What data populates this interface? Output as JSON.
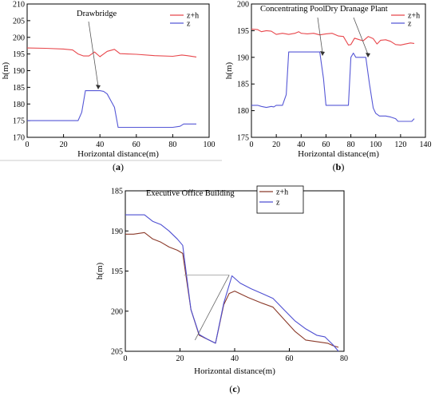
{
  "colors": {
    "zh": "#e8474c",
    "z": "#5557d6",
    "zh_c": "#8b3a2a",
    "z_c": "#4e4fd2"
  },
  "chart_data": [
    {
      "type": "line",
      "panel_label": "(a)",
      "xlabel": "Horizontal distance(m)",
      "ylabel": "h(m)",
      "xlim": [
        0,
        100
      ],
      "ylim": [
        170,
        210
      ],
      "xticks": [
        0,
        20,
        40,
        60,
        80,
        100
      ],
      "yticks": [
        170,
        175,
        180,
        185,
        190,
        195,
        200,
        205,
        210
      ],
      "legend_position": "top-right",
      "series": [
        {
          "name": "z+h",
          "color": "#e8474c",
          "x": [
            0,
            10,
            20,
            25,
            28,
            31,
            34,
            37,
            40,
            44,
            48,
            51,
            55,
            60,
            70,
            80,
            85,
            88,
            93
          ],
          "y": [
            196.8,
            196.7,
            196.5,
            196.2,
            195.0,
            194.4,
            194.4,
            195.6,
            194.2,
            195.8,
            196.4,
            195.1,
            195.0,
            194.9,
            194.5,
            194.3,
            194.7,
            194.5,
            194.1
          ]
        },
        {
          "name": "z",
          "color": "#5557d6",
          "x": [
            0,
            10,
            20,
            25,
            28,
            30,
            32,
            34,
            37,
            40,
            42,
            44,
            48,
            50,
            55,
            60,
            70,
            80,
            84,
            86,
            88,
            93
          ],
          "y": [
            175,
            175,
            175,
            175,
            175,
            177.5,
            184,
            184,
            184,
            184,
            183.8,
            183,
            179,
            173,
            173,
            173,
            173,
            173,
            173.3,
            174,
            174,
            174
          ]
        }
      ],
      "annotations": [
        {
          "text": "Drawbridge"
        }
      ]
    },
    {
      "type": "line",
      "panel_label": "(b)",
      "xlabel": "Horizontal distance(m)",
      "ylabel": "h(m)",
      "xlim": [
        0,
        140
      ],
      "ylim": [
        175,
        200
      ],
      "xticks": [
        0,
        20,
        40,
        60,
        80,
        100,
        120,
        140
      ],
      "yticks": [
        175,
        180,
        185,
        190,
        195,
        200
      ],
      "legend_position": "top-right",
      "series": [
        {
          "name": "z+h",
          "color": "#e8474c",
          "x": [
            0,
            5,
            8,
            12,
            16,
            20,
            25,
            30,
            35,
            38,
            40,
            45,
            50,
            55,
            60,
            65,
            70,
            74,
            78,
            80,
            83,
            87,
            90,
            94,
            98,
            101,
            104,
            108,
            112,
            116,
            120,
            124,
            128,
            131
          ],
          "y": [
            195.3,
            195.2,
            194.8,
            195.0,
            194.9,
            194.3,
            194.5,
            194.3,
            194.5,
            194.8,
            194.5,
            194.4,
            194.5,
            194.2,
            194.4,
            194.5,
            194.0,
            193.9,
            192.3,
            192.4,
            193.6,
            193.3,
            193.1,
            193.9,
            193.5,
            192.5,
            193.2,
            193.3,
            193.0,
            192.4,
            192.3,
            192.5,
            192.7,
            192.6
          ]
        },
        {
          "name": "z",
          "color": "#5557d6",
          "x": [
            0,
            5,
            8,
            12,
            16,
            18,
            20,
            25,
            28,
            30,
            40,
            50,
            55,
            58,
            60,
            70,
            78,
            80,
            82,
            84,
            86,
            90,
            92,
            95,
            98,
            100,
            103,
            108,
            112,
            116,
            118,
            122,
            126,
            129,
            131
          ],
          "y": [
            181,
            181,
            180.8,
            180.6,
            180.8,
            180.7,
            181.0,
            181.0,
            183.0,
            191.0,
            191.0,
            191.0,
            191.0,
            186.0,
            181.0,
            181.0,
            181.0,
            190.0,
            190.8,
            190.0,
            190.0,
            190.0,
            190.0,
            185.0,
            180.5,
            179.5,
            179.0,
            179.0,
            178.8,
            178.5,
            178.0,
            178.0,
            178.0,
            178.0,
            178.5
          ]
        }
      ],
      "annotations": [
        {
          "text": "Concentrating Pool"
        },
        {
          "text": "Dry Dranage Plant"
        }
      ]
    },
    {
      "type": "line",
      "panel_label": "(c)",
      "xlabel": "Horizontal distance(m)",
      "ylabel": "h(m)",
      "xlim": [
        0,
        80
      ],
      "ylim": [
        185,
        205
      ],
      "xticks": [
        0,
        20,
        40,
        60,
        80
      ],
      "yticks": [
        185,
        190,
        195,
        200,
        205
      ],
      "legend_position": "top-right",
      "series": [
        {
          "name": "z+h",
          "color": "#8b3a2a",
          "x": [
            0,
            3,
            7,
            10,
            13,
            16,
            19,
            21,
            24,
            27,
            30,
            33,
            36,
            38,
            40,
            45,
            50,
            54,
            58,
            62,
            66,
            70,
            74,
            76,
            78
          ],
          "y": [
            190.4,
            190.4,
            190.2,
            191.0,
            191.4,
            192.0,
            192.4,
            192.8,
            199.8,
            203.0,
            203.5,
            204.0,
            199.2,
            197.8,
            197.5,
            198.3,
            199.0,
            199.5,
            201.0,
            202.5,
            203.6,
            203.8,
            204.0,
            204.3,
            204.5
          ]
        },
        {
          "name": "z",
          "color": "#4e4fd2",
          "x": [
            0,
            3,
            7,
            10,
            13,
            16,
            19,
            21,
            24,
            27,
            30,
            33,
            36,
            39,
            42,
            46,
            50,
            54,
            58,
            62,
            66,
            70,
            73,
            76,
            78
          ],
          "y": [
            188,
            188,
            188,
            188.8,
            189.2,
            190.0,
            191.0,
            191.8,
            199.8,
            202.9,
            203.5,
            204.0,
            199.0,
            195.6,
            196.5,
            197.2,
            197.8,
            198.4,
            199.8,
            201.2,
            202.2,
            203.0,
            203.2,
            204.2,
            205.0
          ]
        }
      ],
      "annotations": [
        {
          "text": "Executive Office Building"
        }
      ]
    }
  ]
}
